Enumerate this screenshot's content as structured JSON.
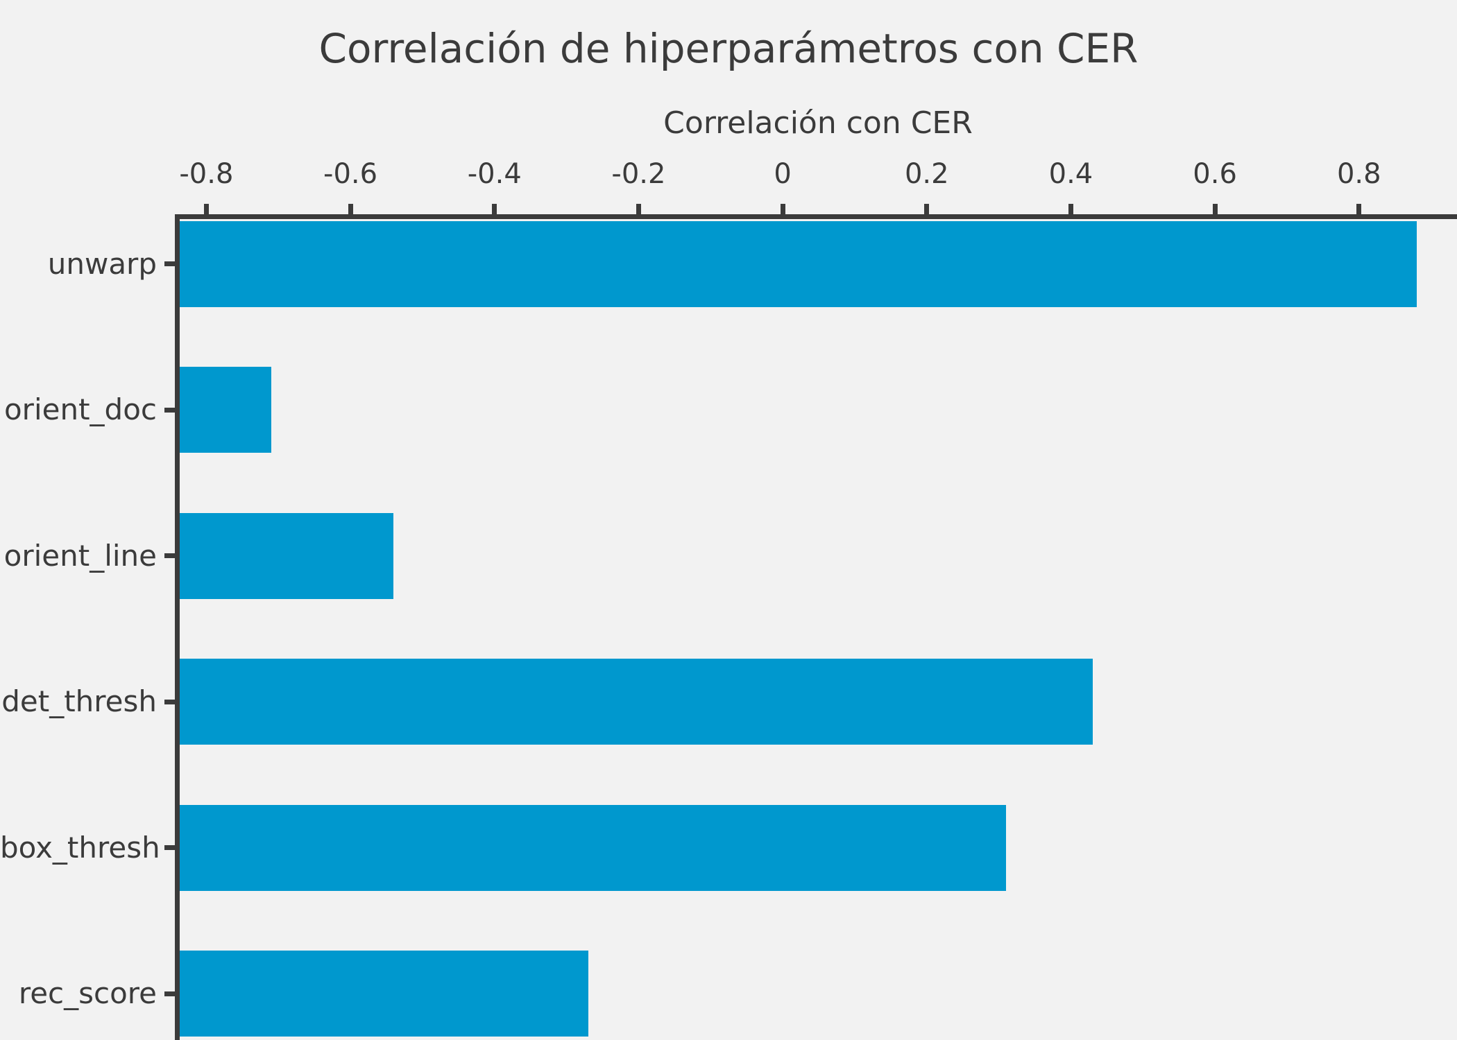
{
  "colors": {
    "background": "#f2f2f2",
    "foreground": "#3b3b3b",
    "bar": "#0098ce"
  },
  "chart_data": {
    "type": "bar",
    "orientation": "horizontal",
    "title": "Correlación de hiperparámetros con CER",
    "xlabel": "Correlación con CER",
    "xlabel_position": "top",
    "categories": [
      "unwarp",
      "orient_doc",
      "orient_line",
      "det_thresh",
      "box_thresh",
      "rec_score"
    ],
    "values": [
      0.88,
      -0.71,
      -0.54,
      0.43,
      0.31,
      -0.27
    ],
    "xticks": [
      -0.8,
      -0.6,
      -0.4,
      -0.2,
      0,
      0.2,
      0.4,
      0.6,
      0.8
    ],
    "xtick_labels": [
      "-0.8",
      "-0.6",
      "-0.4",
      "-0.2",
      "0",
      "0.2",
      "0.4",
      "0.6",
      "0.8"
    ],
    "xlim": [
      -0.837,
      0.936
    ],
    "bars_start_at": "axis_min",
    "grid": false,
    "legend": false,
    "visible_spines": [
      "top",
      "left"
    ]
  }
}
